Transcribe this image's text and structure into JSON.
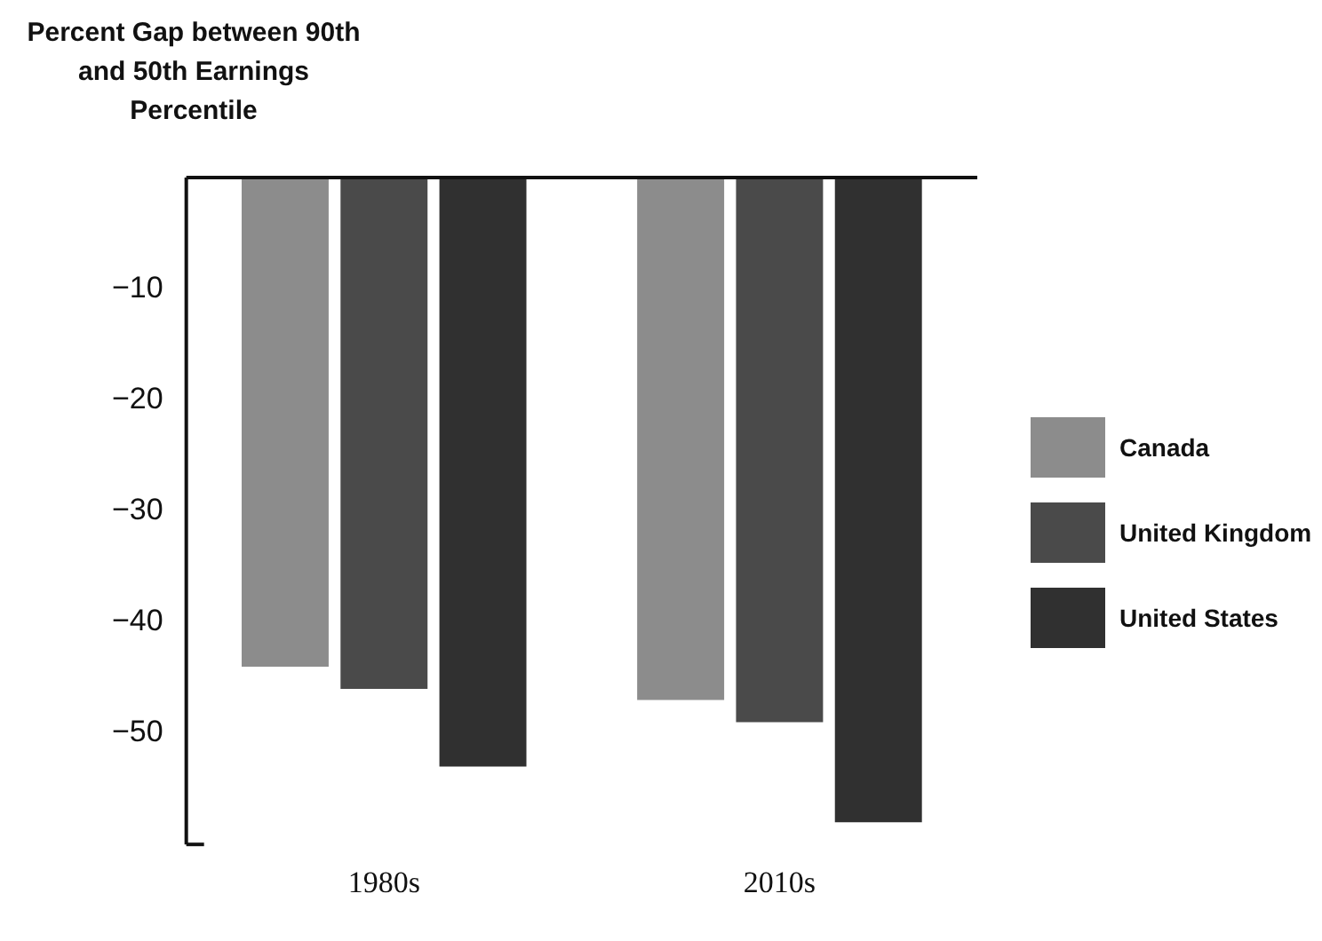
{
  "chart_data": {
    "type": "bar",
    "ylabel": "Percent Gap between 90th and 50th Earnings Percentile",
    "categories": [
      "1980s",
      "2010s"
    ],
    "series": [
      {
        "name": "Canada",
        "color": "#8c8c8c",
        "values": [
          -44,
          -47
        ]
      },
      {
        "name": "United Kingdom",
        "color": "#4a4a4a",
        "values": [
          -46,
          -49
        ]
      },
      {
        "name": "United States",
        "color": "#303030",
        "values": [
          -53,
          -58
        ]
      }
    ],
    "ylim": [
      -60,
      0
    ],
    "yticks": [
      -50,
      -40,
      -30,
      -20,
      -10
    ],
    "grid": false,
    "legend": "right"
  }
}
